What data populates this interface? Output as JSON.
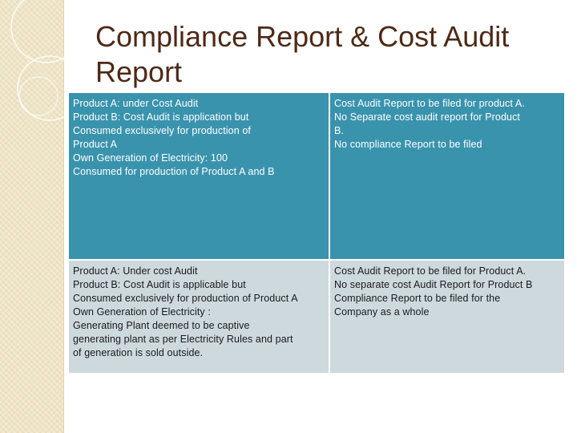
{
  "slide": {
    "title": "Compliance Report & Cost Audit Report"
  },
  "table": {
    "rows": [
      {
        "left": [
          "Product A: under Cost Audit",
          "Product B: Cost Audit is application but",
          "Consumed exclusively for production of",
          "Product A",
          "Own Generation of Electricity: 100",
          "Consumed for production of Product A and B"
        ],
        "right": [
          "Cost Audit Report to be filed for product A.",
          "No Separate cost audit report for Product",
          "B.",
          "No compliance Report to be filed"
        ]
      },
      {
        "left": [
          "Product A: Under cost Audit",
          "Product B: Cost Audit  is applicable but",
          "Consumed exclusively for production of Product A",
          "Own  Generation of Electricity :",
          "Generating Plant deemed to be captive",
          "generating  plant as per Electricity Rules and part",
          "of generation is sold outside."
        ],
        "right": [
          "Cost Audit Report to be filed for Product A.",
          "No separate cost Audit Report  for Product B",
          "Compliance Report to be filed for the",
          "Company as a whole"
        ]
      }
    ]
  }
}
